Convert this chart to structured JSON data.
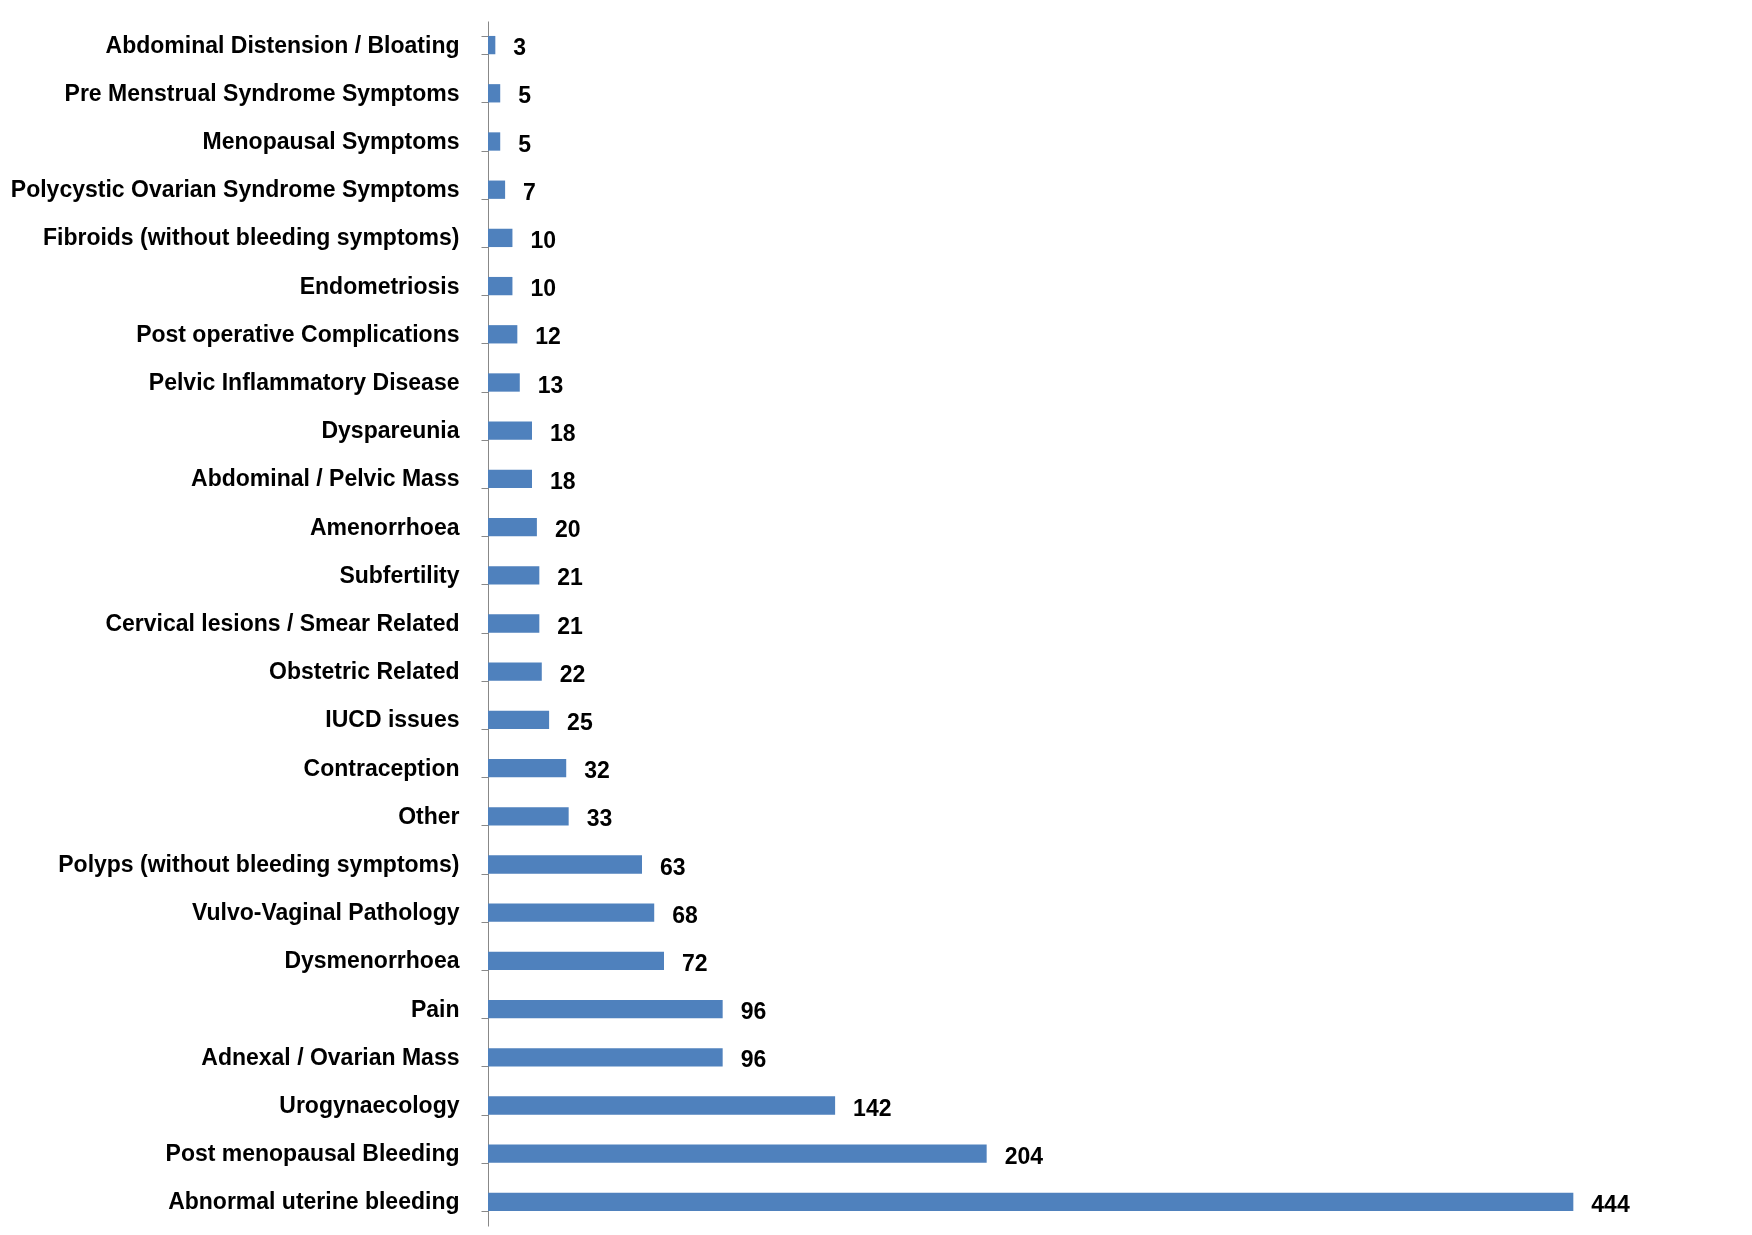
{
  "chart_data": {
    "type": "bar",
    "orientation": "horizontal",
    "data_labels": true,
    "tick_labels": "y",
    "color": "#4f81bd",
    "categories": [
      "Abdominal Distension / Bloating",
      "Pre Menstrual Syndrome Symptoms",
      "Menopausal Symptoms",
      "Polycystic Ovarian Syndrome Symptoms",
      "Fibroids (without bleeding symptoms)",
      "Endometriosis",
      "Post operative Complications",
      "Pelvic Inflammatory Disease",
      "Dyspareunia",
      "Abdominal / Pelvic Mass",
      "Amenorrhoea",
      "Subfertility",
      "Cervical lesions / Smear Related",
      "Obstetric Related",
      "IUCD issues",
      "Contraception",
      "Other",
      "Polyps (without bleeding symptoms)",
      "Vulvo-Vaginal Pathology",
      "Dysmenorrhoea",
      "Pain",
      "Adnexal / Ovarian Mass",
      "Urogynaecology",
      "Post menopausal Bleeding",
      "Abnormal uterine bleeding"
    ],
    "values": [
      3,
      5,
      5,
      7,
      10,
      10,
      12,
      13,
      18,
      18,
      20,
      21,
      21,
      22,
      25,
      32,
      33,
      63,
      68,
      72,
      96,
      96,
      142,
      204,
      444
    ]
  }
}
